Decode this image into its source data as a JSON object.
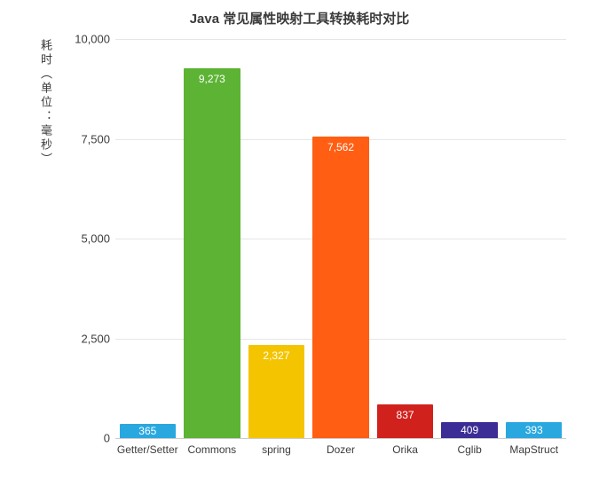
{
  "chart_data": {
    "type": "bar",
    "title": "Java 常见属性映射工具转换耗时对比",
    "ylabel": "耗时（单位：毫秒）",
    "categories": [
      "Getter/Setter",
      "Commons",
      "spring",
      "Dozer",
      "Orika",
      "Cglib",
      "MapStruct"
    ],
    "values": [
      365,
      9273,
      2327,
      7562,
      837,
      409,
      393
    ],
    "value_labels": [
      "365",
      "9,273",
      "2,327",
      "7,562",
      "837",
      "409",
      "393"
    ],
    "bar_colors": [
      "#29a8e0",
      "#5cb334",
      "#f5c400",
      "#ff5e13",
      "#d0211c",
      "#3b2d95",
      "#29a8e0"
    ],
    "ylim": [
      0,
      10000
    ],
    "yticks": [
      0,
      2500,
      5000,
      7500,
      10000
    ],
    "ytick_labels": [
      "0",
      "2,500",
      "5,000",
      "7,500",
      "10,000"
    ],
    "grid": true,
    "legend_position": "none",
    "background_color": "#ffffff",
    "grid_color": "#e6e6e6"
  }
}
